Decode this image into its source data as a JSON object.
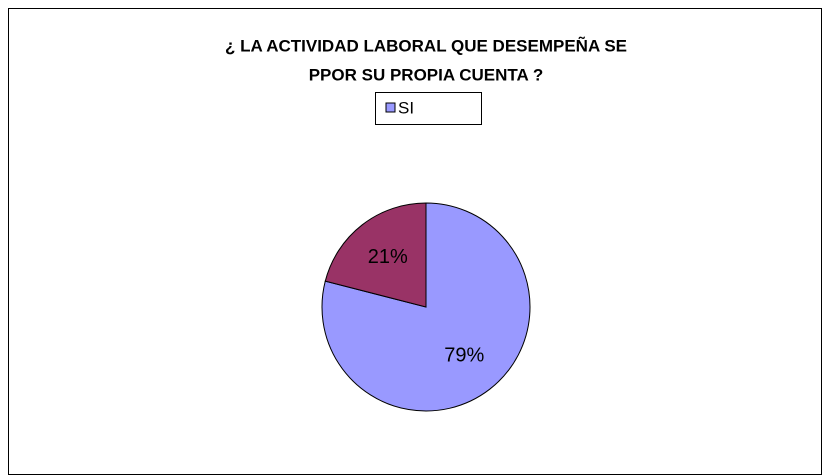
{
  "chart_data": {
    "type": "pie",
    "title": [
      "¿ LA ACTIVIDAD LABORAL QUE DESEMPEÑA SE",
      "PPOR SU PROPIA CUENTA ?"
    ],
    "categories": [
      "SI",
      null
    ],
    "values": [
      79,
      21
    ],
    "value_labels": [
      "79%",
      "21%"
    ],
    "colors": [
      "#9999ff",
      "#993366"
    ],
    "legend": "top"
  }
}
